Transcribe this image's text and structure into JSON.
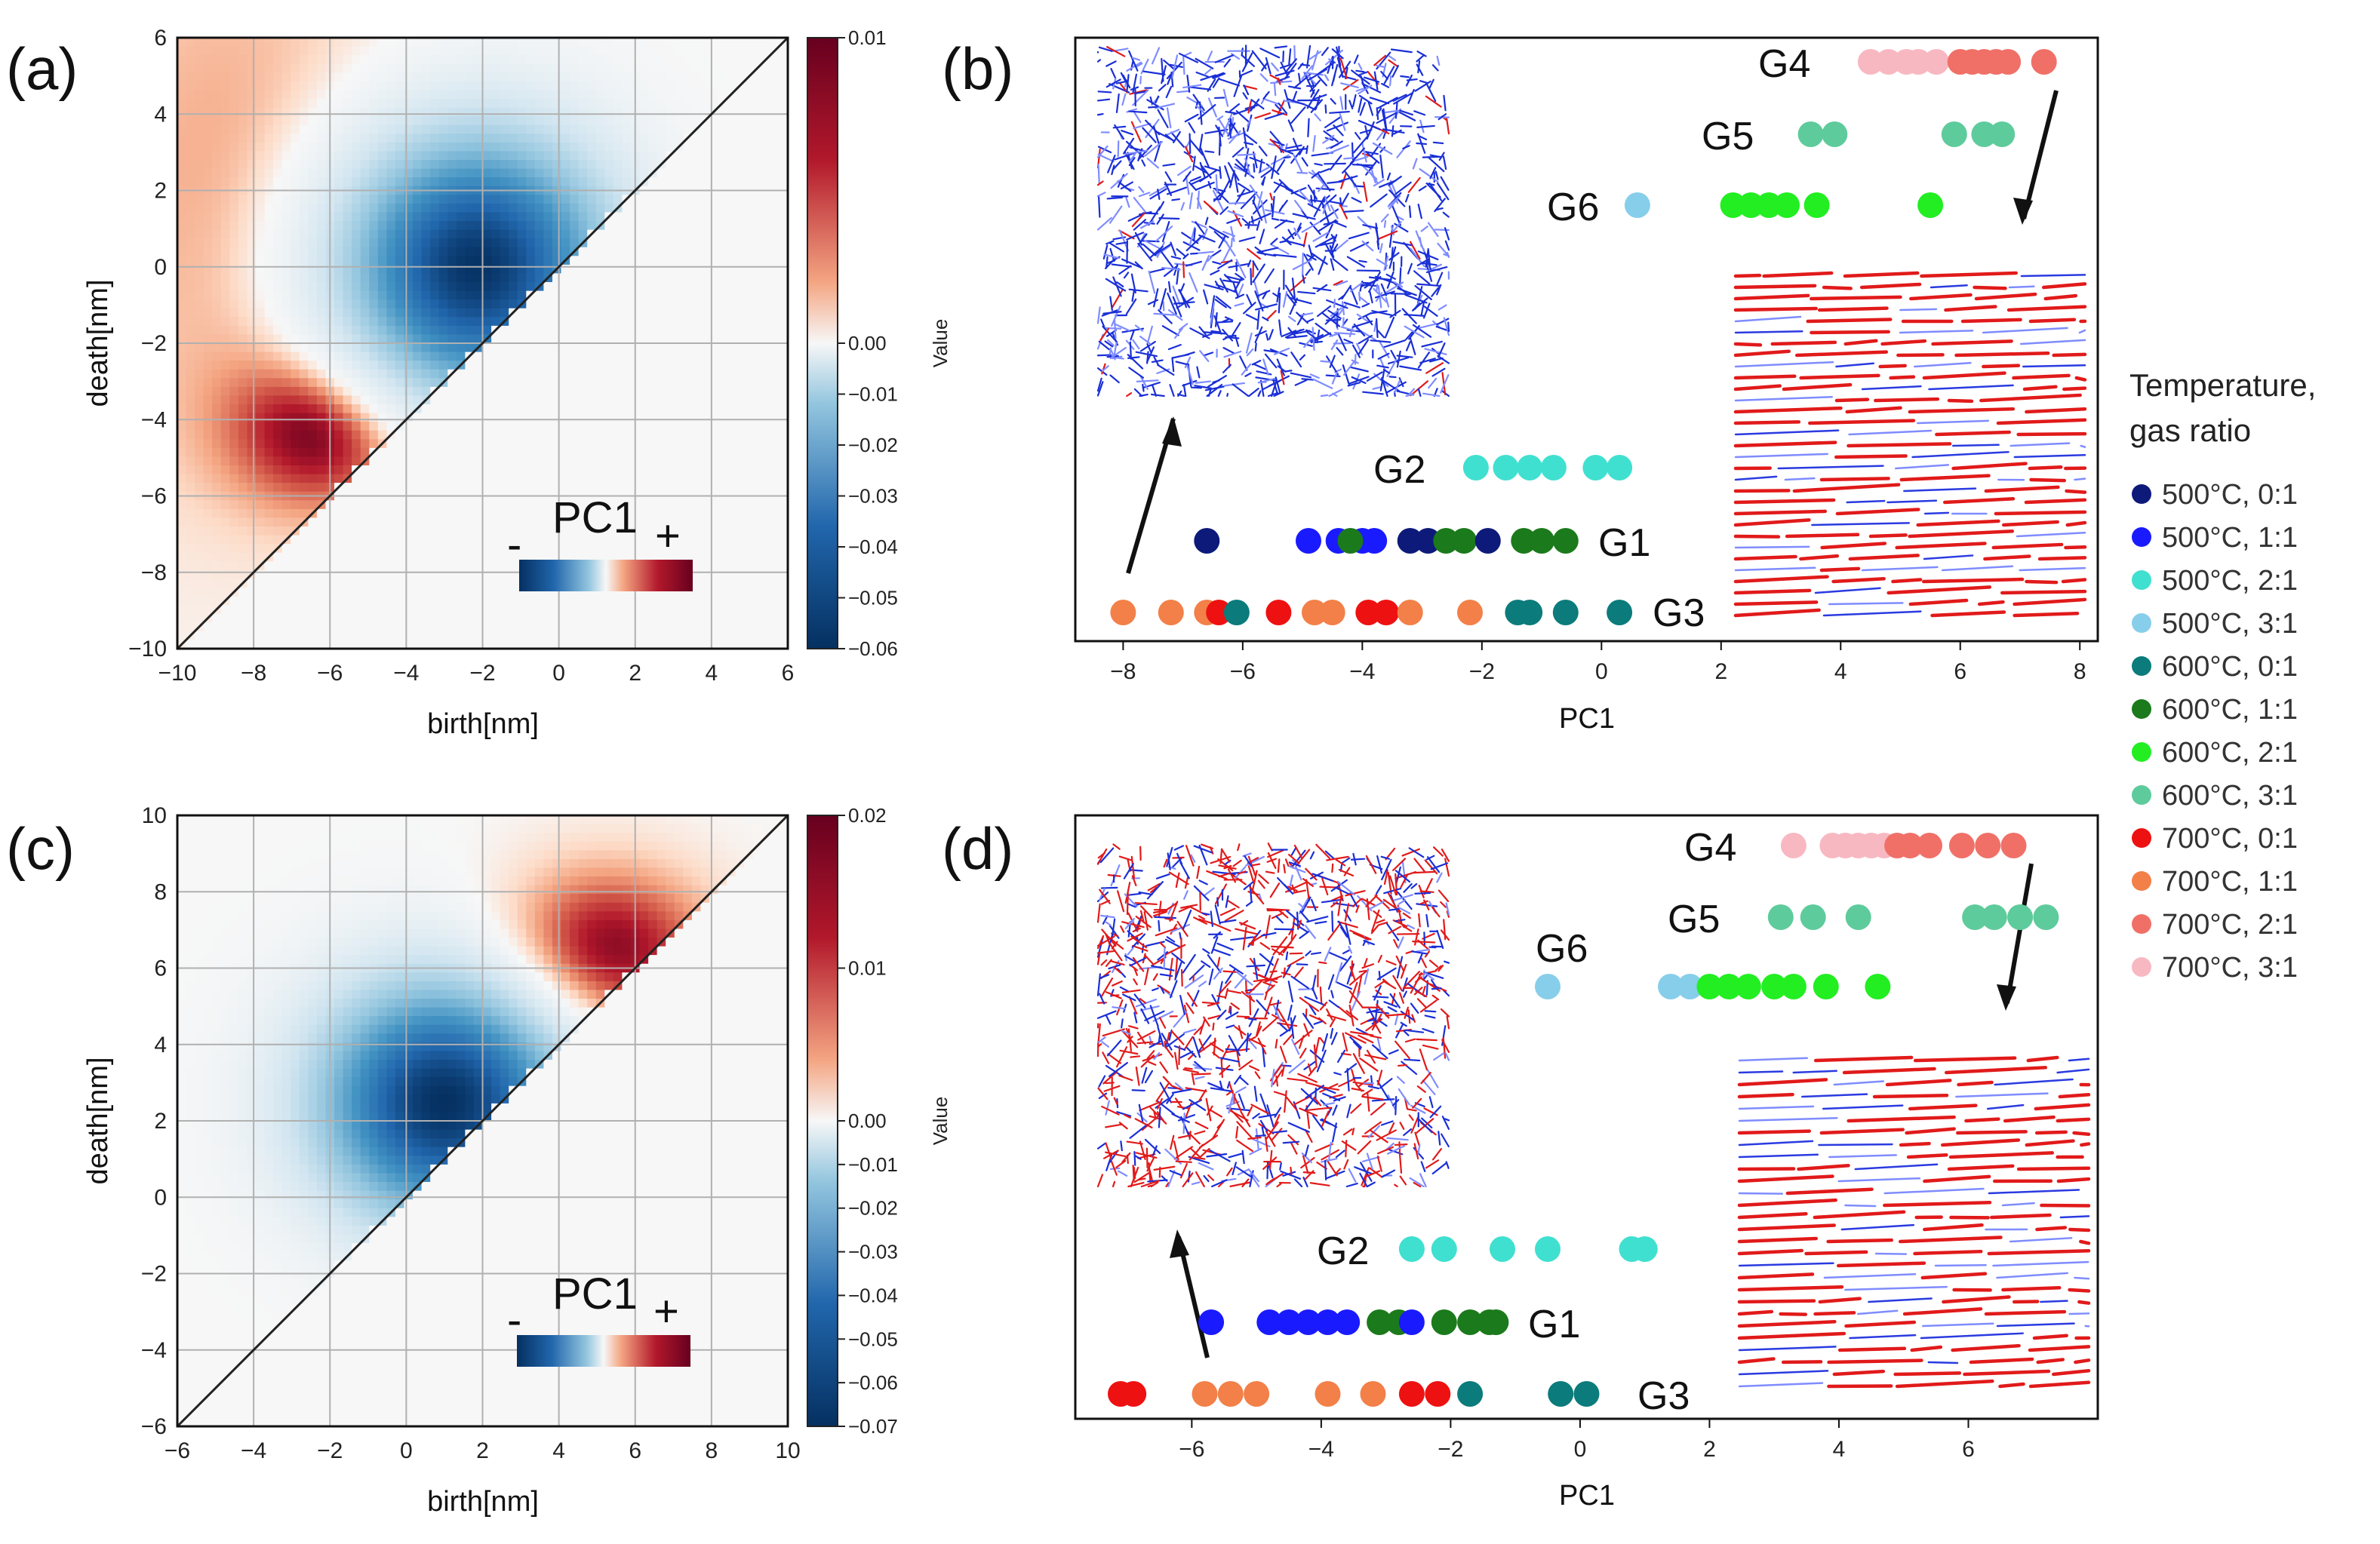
{
  "panel_labels": {
    "a": "(a)",
    "b": "(b)",
    "c": "(c)",
    "d": "(d)"
  },
  "colors": {
    "diverging_low": "#053061",
    "diverging_mid": "#f7f7f7",
    "diverging_high": "#67001f",
    "micro_blue": "#1a2fd6",
    "micro_red": "#e11a1a",
    "micro_lightblue": "#7f8cff"
  },
  "chart_data": [
    {
      "id": "a",
      "type": "heatmap",
      "title": "",
      "xlabel": "birth[nm]",
      "ylabel": "death[nm]",
      "xlim": [
        -10,
        6
      ],
      "ylim": [
        -10,
        6
      ],
      "xticks": [
        -10,
        -8,
        -6,
        -4,
        -2,
        0,
        2,
        4,
        6
      ],
      "yticks": [
        -10,
        -8,
        -6,
        -4,
        -2,
        0,
        2,
        4,
        6
      ],
      "grid": true,
      "diagonal": true,
      "blobs": [
        {
          "x": -2.2,
          "y": 0.0,
          "amp": -0.06,
          "sx": 2.4,
          "sy": 2.4
        },
        {
          "x": -6.0,
          "y": -4.2,
          "amp": 0.01,
          "sx": 1.8,
          "sy": 1.5
        },
        {
          "x": -8.5,
          "y": 2.0,
          "amp": 0.004,
          "sx": 3.5,
          "sy": 6.0
        }
      ],
      "colorbar": {
        "label": "Value",
        "ticks": [
          "0.01",
          "0.00",
          "−0.01",
          "−0.02",
          "−0.03",
          "−0.04",
          "−0.05",
          "−0.06"
        ],
        "tick_values": [
          0.01,
          0.0,
          -0.01,
          -0.02,
          -0.03,
          -0.04,
          -0.05,
          -0.06
        ],
        "range": [
          -0.06,
          0.01
        ]
      },
      "inset_legend": {
        "label": "PC1",
        "minus": "-",
        "plus": "+"
      }
    },
    {
      "id": "c",
      "type": "heatmap",
      "title": "",
      "xlabel": "birth[nm]",
      "ylabel": "death[nm]",
      "xlim": [
        -6,
        10
      ],
      "ylim": [
        -6,
        10
      ],
      "xticks": [
        -6,
        -4,
        -2,
        0,
        2,
        4,
        6,
        8,
        10
      ],
      "yticks": [
        -6,
        -4,
        -2,
        0,
        2,
        4,
        6,
        8,
        10
      ],
      "grid": true,
      "diagonal": true,
      "blobs": [
        {
          "x": 1.0,
          "y": 2.5,
          "amp": -0.07,
          "sx": 2.3,
          "sy": 2.2
        },
        {
          "x": 5.2,
          "y": 6.4,
          "amp": 0.02,
          "sx": 2.0,
          "sy": 1.6
        }
      ],
      "colorbar": {
        "label": "Value",
        "ticks": [
          "0.02",
          "0.01",
          "0.00",
          "−0.01",
          "−0.02",
          "−0.03",
          "−0.04",
          "−0.05",
          "−0.06",
          "−0.07"
        ],
        "tick_values": [
          0.02,
          0.01,
          0.0,
          -0.01,
          -0.02,
          -0.03,
          -0.04,
          -0.05,
          -0.06,
          -0.07
        ],
        "range": [
          -0.07,
          0.02
        ]
      },
      "inset_legend": {
        "label": "PC1",
        "minus": "-",
        "plus": "+"
      }
    },
    {
      "id": "b",
      "type": "scatter",
      "xlabel": "PC1",
      "xlim": [
        -8.8,
        8.3
      ],
      "xticks": [
        -8,
        -6,
        -4,
        -2,
        0,
        2,
        4,
        6,
        8
      ],
      "rows": [
        {
          "group": "G4",
          "level": 6,
          "points": [
            {
              "x": 4.5,
              "c": "700°C, 3:1"
            },
            {
              "x": 4.8,
              "c": "700°C, 3:1"
            },
            {
              "x": 5.1,
              "c": "700°C, 3:1"
            },
            {
              "x": 5.3,
              "c": "700°C, 3:1"
            },
            {
              "x": 5.6,
              "c": "700°C, 3:1"
            },
            {
              "x": 6.0,
              "c": "700°C, 2:1"
            },
            {
              "x": 6.2,
              "c": "700°C, 2:1"
            },
            {
              "x": 6.4,
              "c": "700°C, 2:1"
            },
            {
              "x": 6.6,
              "c": "700°C, 2:1"
            },
            {
              "x": 6.8,
              "c": "700°C, 2:1"
            },
            {
              "x": 7.4,
              "c": "700°C, 2:1"
            }
          ]
        },
        {
          "group": "G5",
          "level": 5,
          "points": [
            {
              "x": 3.5,
              "c": "600°C, 3:1"
            },
            {
              "x": 3.9,
              "c": "600°C, 3:1"
            },
            {
              "x": 5.9,
              "c": "600°C, 3:1"
            },
            {
              "x": 6.4,
              "c": "600°C, 3:1"
            },
            {
              "x": 6.7,
              "c": "600°C, 3:1"
            }
          ]
        },
        {
          "group": "G6",
          "level": 4,
          "points": [
            {
              "x": 0.6,
              "c": "500°C, 3:1"
            },
            {
              "x": 2.2,
              "c": "600°C, 2:1"
            },
            {
              "x": 2.5,
              "c": "600°C, 2:1"
            },
            {
              "x": 2.8,
              "c": "600°C, 2:1"
            },
            {
              "x": 3.1,
              "c": "600°C, 2:1"
            },
            {
              "x": 3.6,
              "c": "600°C, 2:1"
            },
            {
              "x": 5.5,
              "c": "600°C, 2:1"
            }
          ]
        },
        {
          "group": "G2",
          "level": 2.3,
          "points": [
            {
              "x": -2.1,
              "c": "500°C, 2:1"
            },
            {
              "x": -1.6,
              "c": "500°C, 2:1"
            },
            {
              "x": -1.2,
              "c": "500°C, 2:1"
            },
            {
              "x": -0.8,
              "c": "500°C, 2:1"
            },
            {
              "x": -0.1,
              "c": "500°C, 2:1"
            },
            {
              "x": 0.3,
              "c": "500°C, 2:1"
            }
          ]
        },
        {
          "group": "G1",
          "level": 1.2,
          "points": [
            {
              "x": -6.6,
              "c": "500°C, 0:1"
            },
            {
              "x": -4.9,
              "c": "500°C, 1:1"
            },
            {
              "x": -4.4,
              "c": "500°C, 1:1"
            },
            {
              "x": -4.0,
              "c": "500°C, 1:1"
            },
            {
              "x": -3.8,
              "c": "500°C, 1:1"
            },
            {
              "x": -4.2,
              "c": "600°C, 1:1"
            },
            {
              "x": -3.2,
              "c": "500°C, 0:1"
            },
            {
              "x": -2.9,
              "c": "500°C, 0:1"
            },
            {
              "x": -2.6,
              "c": "600°C, 1:1"
            },
            {
              "x": -2.3,
              "c": "600°C, 1:1"
            },
            {
              "x": -1.9,
              "c": "500°C, 0:1"
            },
            {
              "x": -1.3,
              "c": "600°C, 1:1"
            },
            {
              "x": -1.0,
              "c": "600°C, 1:1"
            },
            {
              "x": -0.6,
              "c": "600°C, 1:1"
            }
          ]
        },
        {
          "group": "G3",
          "level": 0,
          "points": [
            {
              "x": -8.0,
              "c": "700°C, 1:1"
            },
            {
              "x": -7.2,
              "c": "700°C, 1:1"
            },
            {
              "x": -6.6,
              "c": "700°C, 1:1"
            },
            {
              "x": -6.4,
              "c": "700°C, 0:1"
            },
            {
              "x": -6.1,
              "c": "600°C, 0:1"
            },
            {
              "x": -5.4,
              "c": "700°C, 0:1"
            },
            {
              "x": -4.8,
              "c": "700°C, 1:1"
            },
            {
              "x": -4.5,
              "c": "700°C, 1:1"
            },
            {
              "x": -3.9,
              "c": "700°C, 0:1"
            },
            {
              "x": -3.6,
              "c": "700°C, 0:1"
            },
            {
              "x": -3.2,
              "c": "700°C, 1:1"
            },
            {
              "x": -2.2,
              "c": "700°C, 1:1"
            },
            {
              "x": -1.4,
              "c": "600°C, 0:1"
            },
            {
              "x": -1.2,
              "c": "600°C, 0:1"
            },
            {
              "x": -0.6,
              "c": "600°C, 0:1"
            },
            {
              "x": 0.3,
              "c": "600°C, 0:1"
            }
          ]
        }
      ]
    },
    {
      "id": "d",
      "type": "scatter",
      "xlabel": "PC1",
      "xlim": [
        -7.8,
        8.0
      ],
      "xticks": [
        -6,
        -4,
        -2,
        0,
        2,
        4,
        6
      ],
      "rows": [
        {
          "group": "G4",
          "level": 6,
          "points": [
            {
              "x": 3.3,
              "c": "700°C, 3:1"
            },
            {
              "x": 3.9,
              "c": "700°C, 3:1"
            },
            {
              "x": 4.1,
              "c": "700°C, 3:1"
            },
            {
              "x": 4.3,
              "c": "700°C, 3:1"
            },
            {
              "x": 4.5,
              "c": "700°C, 3:1"
            },
            {
              "x": 4.7,
              "c": "700°C, 3:1"
            },
            {
              "x": 4.9,
              "c": "700°C, 2:1"
            },
            {
              "x": 5.1,
              "c": "700°C, 2:1"
            },
            {
              "x": 5.4,
              "c": "700°C, 2:1"
            },
            {
              "x": 5.9,
              "c": "700°C, 2:1"
            },
            {
              "x": 6.3,
              "c": "700°C, 2:1"
            },
            {
              "x": 6.7,
              "c": "700°C, 2:1"
            }
          ]
        },
        {
          "group": "G5",
          "level": 5,
          "points": [
            {
              "x": 3.1,
              "c": "600°C, 3:1"
            },
            {
              "x": 3.6,
              "c": "600°C, 3:1"
            },
            {
              "x": 4.3,
              "c": "600°C, 3:1"
            },
            {
              "x": 6.1,
              "c": "600°C, 3:1"
            },
            {
              "x": 6.4,
              "c": "600°C, 3:1"
            },
            {
              "x": 6.8,
              "c": "600°C, 3:1"
            },
            {
              "x": 7.2,
              "c": "600°C, 3:1"
            }
          ]
        },
        {
          "group": "G6",
          "level": 3.9,
          "points": [
            {
              "x": -0.5,
              "c": "500°C, 3:1"
            },
            {
              "x": 1.4,
              "c": "500°C, 3:1"
            },
            {
              "x": 1.7,
              "c": "500°C, 3:1"
            },
            {
              "x": 2.0,
              "c": "600°C, 2:1"
            },
            {
              "x": 2.3,
              "c": "600°C, 2:1"
            },
            {
              "x": 2.6,
              "c": "600°C, 2:1"
            },
            {
              "x": 3.0,
              "c": "600°C, 2:1"
            },
            {
              "x": 3.3,
              "c": "600°C, 2:1"
            },
            {
              "x": 3.8,
              "c": "600°C, 2:1"
            },
            {
              "x": 4.6,
              "c": "600°C, 2:1"
            }
          ]
        },
        {
          "group": "G2",
          "level": 2.1,
          "points": [
            {
              "x": -2.6,
              "c": "500°C, 2:1"
            },
            {
              "x": -2.1,
              "c": "500°C, 2:1"
            },
            {
              "x": -1.2,
              "c": "500°C, 2:1"
            },
            {
              "x": -0.5,
              "c": "500°C, 2:1"
            },
            {
              "x": 0.8,
              "c": "500°C, 2:1"
            },
            {
              "x": 1.0,
              "c": "500°C, 2:1"
            }
          ]
        },
        {
          "group": "G1",
          "level": 1.0,
          "points": [
            {
              "x": -5.7,
              "c": "500°C, 1:1"
            },
            {
              "x": -4.8,
              "c": "500°C, 1:1"
            },
            {
              "x": -4.5,
              "c": "500°C, 1:1"
            },
            {
              "x": -4.2,
              "c": "500°C, 1:1"
            },
            {
              "x": -3.9,
              "c": "500°C, 1:1"
            },
            {
              "x": -3.6,
              "c": "500°C, 1:1"
            },
            {
              "x": -3.1,
              "c": "600°C, 1:1"
            },
            {
              "x": -2.8,
              "c": "600°C, 1:1"
            },
            {
              "x": -2.6,
              "c": "500°C, 1:1"
            },
            {
              "x": -2.1,
              "c": "600°C, 1:1"
            },
            {
              "x": -1.7,
              "c": "600°C, 1:1"
            },
            {
              "x": -1.4,
              "c": "600°C, 1:1"
            },
            {
              "x": -1.3,
              "c": "600°C, 1:1"
            }
          ]
        },
        {
          "group": "G3",
          "level": 0,
          "points": [
            {
              "x": -7.1,
              "c": "700°C, 0:1"
            },
            {
              "x": -6.9,
              "c": "700°C, 0:1"
            },
            {
              "x": -5.8,
              "c": "700°C, 1:1"
            },
            {
              "x": -5.4,
              "c": "700°C, 1:1"
            },
            {
              "x": -5.0,
              "c": "700°C, 1:1"
            },
            {
              "x": -3.9,
              "c": "700°C, 1:1"
            },
            {
              "x": -3.2,
              "c": "700°C, 1:1"
            },
            {
              "x": -2.6,
              "c": "700°C, 0:1"
            },
            {
              "x": -2.2,
              "c": "700°C, 0:1"
            },
            {
              "x": -1.7,
              "c": "600°C, 0:1"
            },
            {
              "x": -0.3,
              "c": "600°C, 0:1"
            },
            {
              "x": 0.1,
              "c": "600°C, 0:1"
            }
          ]
        }
      ]
    }
  ],
  "legend": {
    "title_line1": "Temperature,",
    "title_line2": "gas ratio",
    "items": [
      {
        "label": "500°C, 0:1",
        "color": "#0d1a7a"
      },
      {
        "label": "500°C, 1:1",
        "color": "#1a1aff"
      },
      {
        "label": "500°C, 2:1",
        "color": "#40e0d0"
      },
      {
        "label": "500°C, 3:1",
        "color": "#87ceeb"
      },
      {
        "label": "600°C, 0:1",
        "color": "#0b7b7b"
      },
      {
        "label": "600°C, 1:1",
        "color": "#1b7a1b"
      },
      {
        "label": "600°C, 2:1",
        "color": "#22ee22"
      },
      {
        "label": "600°C, 3:1",
        "color": "#5ecb9c"
      },
      {
        "label": "700°C, 0:1",
        "color": "#ee1111"
      },
      {
        "label": "700°C, 1:1",
        "color": "#f28048"
      },
      {
        "label": "700°C, 2:1",
        "color": "#f07068"
      },
      {
        "label": "700°C, 3:1",
        "color": "#f8b8c2"
      }
    ]
  }
}
